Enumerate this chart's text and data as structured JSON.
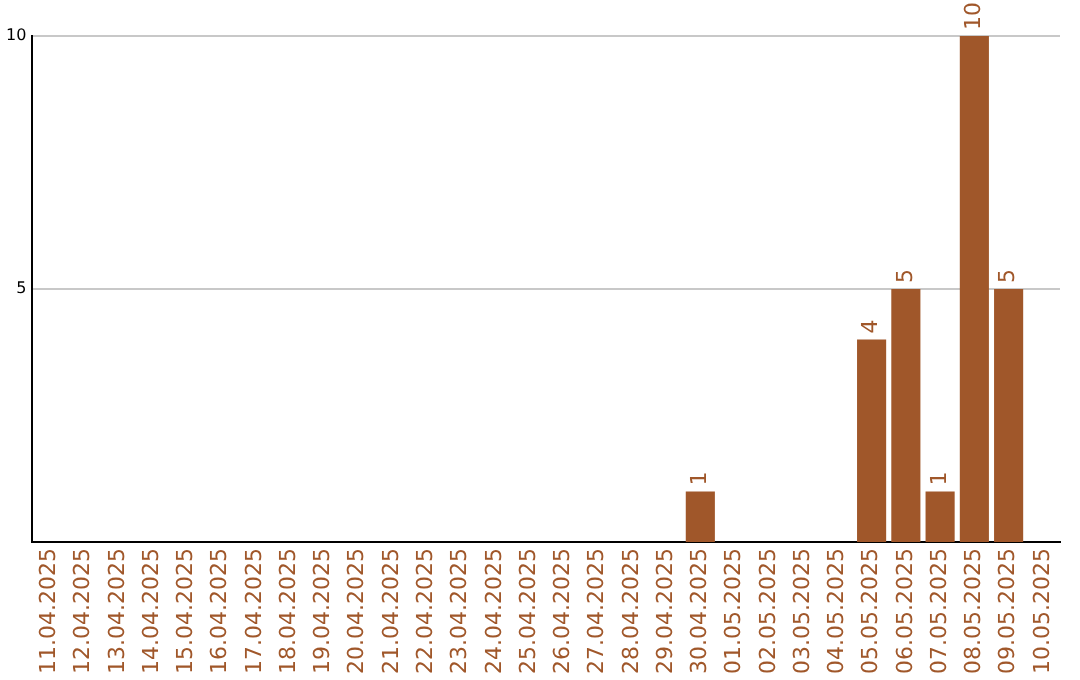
{
  "chart_data": {
    "type": "bar",
    "categories": [
      "11.04.2025",
      "12.04.2025",
      "13.04.2025",
      "14.04.2025",
      "15.04.2025",
      "16.04.2025",
      "17.04.2025",
      "18.04.2025",
      "19.04.2025",
      "20.04.2025",
      "21.04.2025",
      "22.04.2025",
      "23.04.2025",
      "24.04.2025",
      "25.04.2025",
      "26.04.2025",
      "27.04.2025",
      "28.04.2025",
      "29.04.2025",
      "30.04.2025",
      "01.05.2025",
      "02.05.2025",
      "03.05.2025",
      "04.05.2025",
      "05.05.2025",
      "06.05.2025",
      "07.05.2025",
      "08.05.2025",
      "09.05.2025",
      "10.05.2025"
    ],
    "values": [
      0,
      0,
      0,
      0,
      0,
      0,
      0,
      0,
      0,
      0,
      0,
      0,
      0,
      0,
      0,
      0,
      0,
      0,
      0,
      1,
      0,
      0,
      0,
      0,
      4,
      5,
      1,
      10,
      5,
      0
    ],
    "value_labels": [
      null,
      null,
      null,
      null,
      null,
      null,
      null,
      null,
      null,
      null,
      null,
      null,
      null,
      null,
      null,
      null,
      null,
      null,
      null,
      "1",
      null,
      null,
      null,
      null,
      "4",
      "5",
      "1",
      "10",
      "5",
      null
    ],
    "color": "#a0572a",
    "ylim": [
      0,
      10
    ],
    "yticks": [
      5,
      10
    ],
    "grid": "y",
    "legend": false
  }
}
